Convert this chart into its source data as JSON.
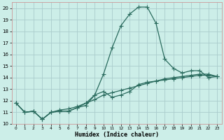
{
  "title": "",
  "xlabel": "Humidex (Indice chaleur)",
  "ylabel": "",
  "background_color": "#cceee8",
  "grid_color": "#aacccc",
  "line_color": "#2a6b5e",
  "xlim": [
    -0.5,
    23.5
  ],
  "ylim": [
    10,
    20.5
  ],
  "yticks": [
    10,
    11,
    12,
    13,
    14,
    15,
    16,
    17,
    18,
    19,
    20
  ],
  "xticks": [
    0,
    1,
    2,
    3,
    4,
    5,
    6,
    7,
    8,
    9,
    10,
    11,
    12,
    13,
    14,
    15,
    16,
    17,
    18,
    19,
    20,
    21,
    22,
    23
  ],
  "series1_x": [
    0,
    1,
    2,
    3,
    4,
    5,
    6,
    7,
    8,
    9,
    10,
    11,
    12,
    13,
    14,
    15,
    16,
    17,
    18,
    19,
    20,
    21,
    22,
    23
  ],
  "series1_y": [
    11.8,
    11.0,
    11.1,
    10.4,
    11.0,
    11.1,
    11.1,
    11.4,
    11.6,
    12.5,
    14.3,
    16.6,
    18.5,
    19.5,
    20.1,
    20.1,
    18.7,
    15.6,
    14.8,
    14.4,
    14.6,
    14.6,
    14.0,
    14.1
  ],
  "series2_x": [
    0,
    1,
    2,
    3,
    4,
    5,
    6,
    7,
    8,
    9,
    10,
    11,
    12,
    13,
    14,
    15,
    16,
    17,
    18,
    19,
    20,
    21,
    22,
    23
  ],
  "series2_y": [
    11.8,
    11.0,
    11.1,
    10.4,
    11.0,
    11.1,
    11.1,
    11.4,
    11.8,
    12.5,
    12.8,
    12.3,
    12.5,
    12.8,
    13.4,
    13.6,
    13.7,
    13.8,
    13.9,
    14.0,
    14.1,
    14.2,
    14.2,
    14.1
  ],
  "series3_x": [
    0,
    1,
    2,
    3,
    4,
    5,
    6,
    7,
    8,
    9,
    10,
    11,
    12,
    13,
    14,
    15,
    16,
    17,
    18,
    19,
    20,
    21,
    22,
    23
  ],
  "series3_y": [
    11.8,
    11.0,
    11.1,
    10.4,
    11.0,
    11.2,
    11.3,
    11.5,
    11.8,
    12.1,
    12.5,
    12.7,
    12.9,
    13.1,
    13.3,
    13.5,
    13.7,
    13.9,
    14.0,
    14.1,
    14.2,
    14.3,
    14.3,
    14.1
  ]
}
